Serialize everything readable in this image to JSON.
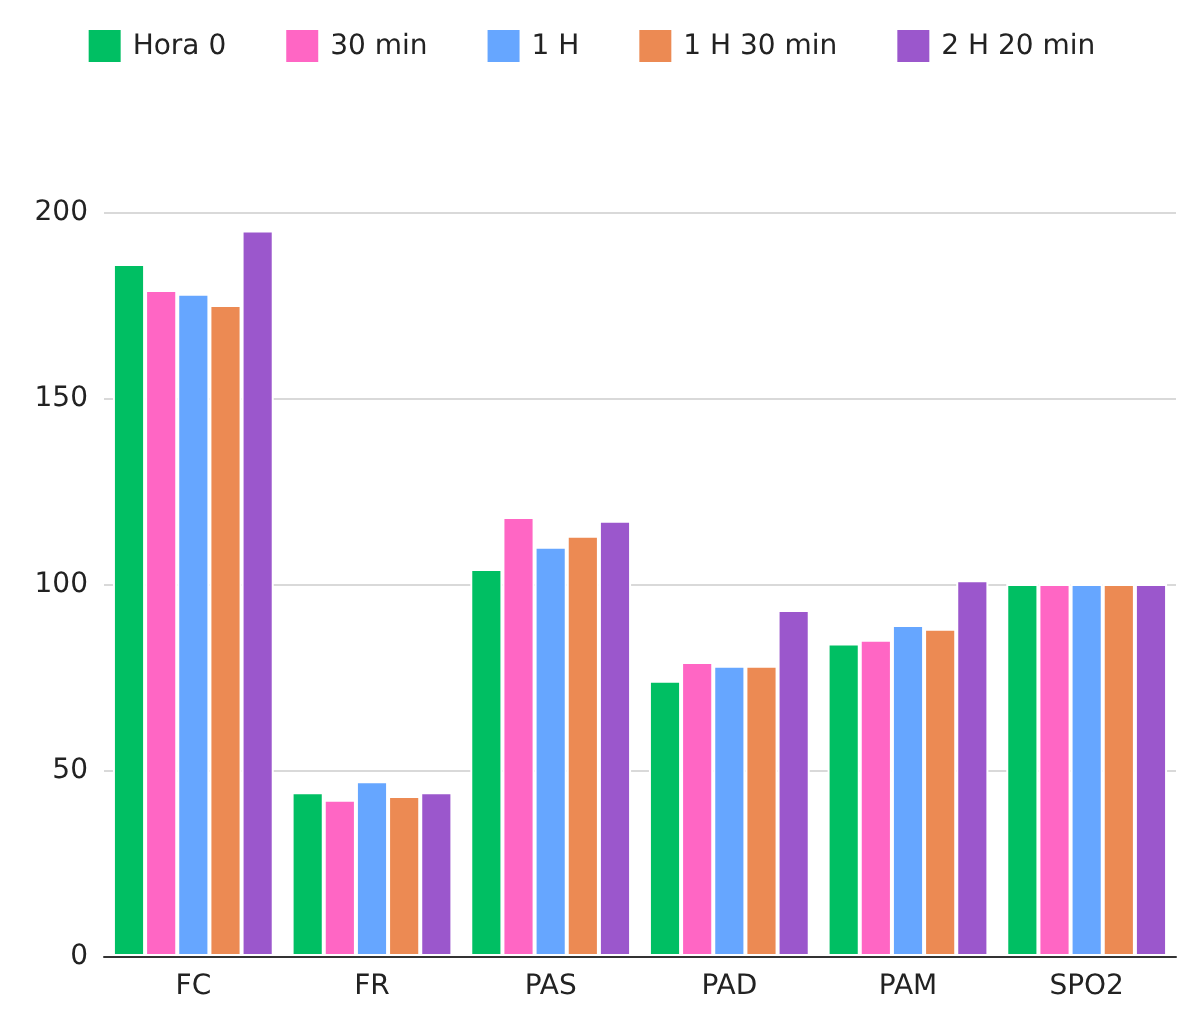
{
  "chart_data": {
    "type": "bar",
    "categories": [
      "FC",
      "FR",
      "PAS",
      "PAD",
      "PAM",
      "SPO2"
    ],
    "series": [
      {
        "name": "Hora 0",
        "color": "#00bf63",
        "values": [
          186,
          44,
          104,
          74,
          84,
          100
        ]
      },
      {
        "name": "30 min",
        "color": "#ff66c4",
        "values": [
          179,
          42,
          118,
          79,
          85,
          100
        ]
      },
      {
        "name": "1 H",
        "color": "#66a6ff",
        "values": [
          178,
          47,
          110,
          78,
          89,
          100
        ]
      },
      {
        "name": "1 H 30 min",
        "color": "#ec8a53",
        "values": [
          175,
          43,
          113,
          78,
          88,
          100
        ]
      },
      {
        "name": "2 H 20 min",
        "color": "#9b57cc",
        "values": [
          195,
          44,
          117,
          93,
          101,
          100
        ]
      }
    ],
    "ylim": [
      0,
      200
    ],
    "yticks": [
      0,
      50,
      100,
      150,
      200
    ],
    "grid": "y",
    "legend": "top"
  }
}
